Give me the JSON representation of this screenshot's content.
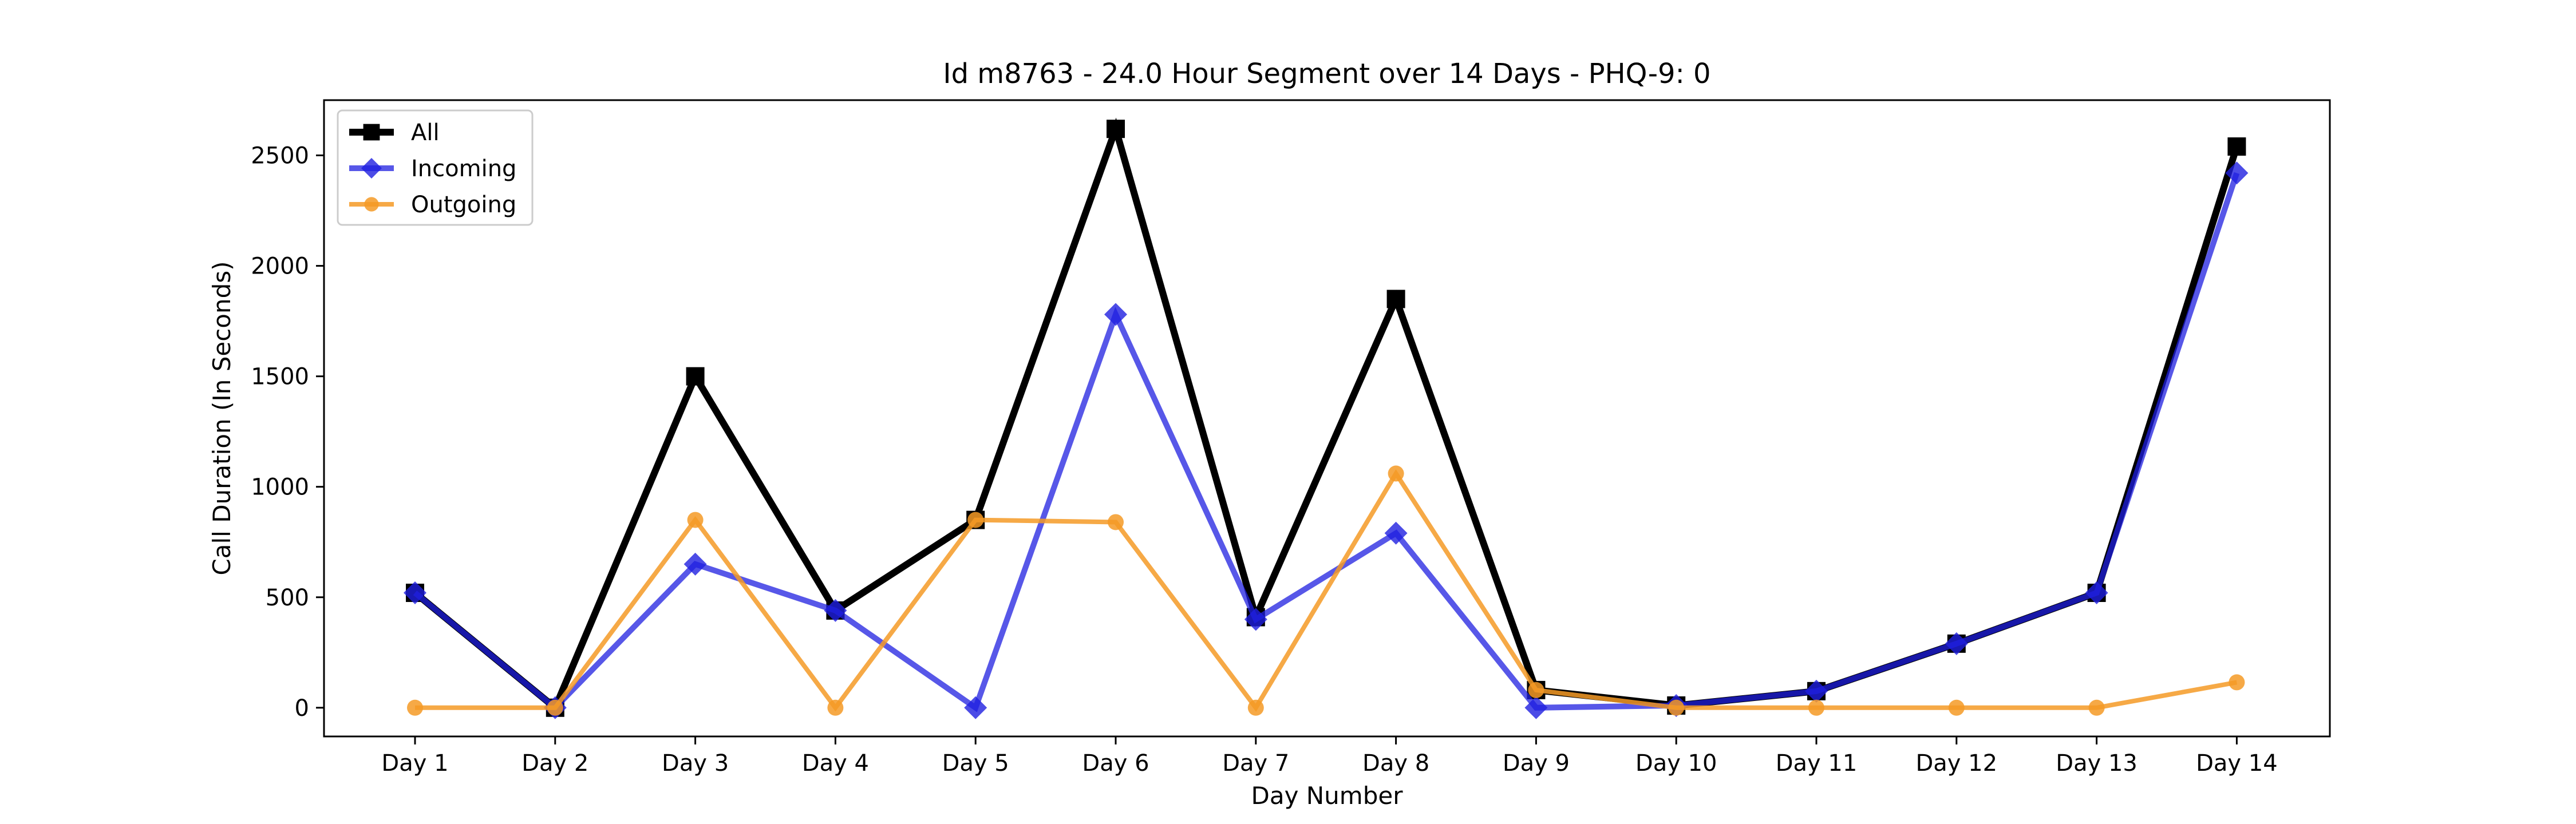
{
  "chart_data": {
    "type": "line",
    "title": "Id m8763 - 24.0 Hour Segment over 14 Days - PHQ-9: 0",
    "xlabel": "Day Number",
    "ylabel": "Call Duration (In Seconds)",
    "categories": [
      "Day 1",
      "Day 2",
      "Day 3",
      "Day 4",
      "Day 5",
      "Day 6",
      "Day 7",
      "Day 8",
      "Day 9",
      "Day 10",
      "Day 11",
      "Day 12",
      "Day 13",
      "Day 14"
    ],
    "ylim": [
      -130,
      2750
    ],
    "yticks": [
      0,
      500,
      1000,
      1500,
      2000,
      2500
    ],
    "grid": false,
    "legend_position": "top-left",
    "series": [
      {
        "name": "All",
        "color": "#000000",
        "marker": "square",
        "values": [
          520,
          0,
          1500,
          440,
          850,
          2620,
          410,
          1850,
          80,
          10,
          75,
          290,
          520,
          2540
        ]
      },
      {
        "name": "Incoming",
        "color": "#1f1fe0",
        "marker": "diamond",
        "values": [
          520,
          0,
          650,
          440,
          0,
          1780,
          400,
          790,
          0,
          10,
          75,
          290,
          520,
          2420
        ]
      },
      {
        "name": "Outgoing",
        "color": "#f59a26",
        "marker": "circle",
        "values": [
          0,
          0,
          850,
          0,
          850,
          840,
          0,
          1060,
          80,
          0,
          0,
          0,
          0,
          115
        ]
      }
    ]
  }
}
